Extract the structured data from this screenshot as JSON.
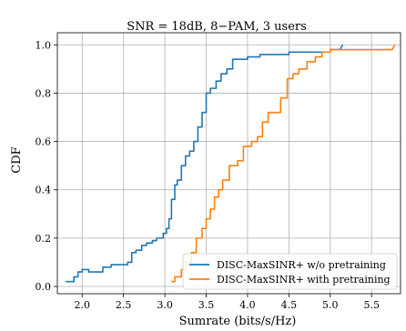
{
  "chart_data": {
    "type": "line",
    "title": "SNR = 18dB, 8−PAM, 3 users",
    "xlabel": "Sumrate (bits/s/Hz)",
    "ylabel": "CDF",
    "xlim": [
      1.7,
      5.85
    ],
    "ylim": [
      -0.03,
      1.05
    ],
    "xticks": [
      2.0,
      2.5,
      3.0,
      3.5,
      4.0,
      4.5,
      5.0,
      5.5
    ],
    "xtick_labels": [
      "2.0",
      "2.5",
      "3.0",
      "3.5",
      "4.0",
      "4.5",
      "5.0",
      "5.5"
    ],
    "yticks": [
      0.0,
      0.2,
      0.4,
      0.6,
      0.8,
      1.0
    ],
    "ytick_labels": [
      "0.0",
      "0.2",
      "0.4",
      "0.6",
      "0.8",
      "1.0"
    ],
    "grid": true,
    "legend": "bottom-right",
    "colors": {
      "blue": "#1f77b4",
      "orange": "#ff7f0e"
    },
    "series": [
      {
        "name": "DISC-MaxSINR+ w/o pretraining",
        "color": "#1f77b4",
        "x": [
          1.8,
          1.9,
          1.9,
          1.95,
          1.95,
          2.0,
          2.0,
          2.08,
          2.08,
          2.25,
          2.25,
          2.35,
          2.35,
          2.55,
          2.55,
          2.6,
          2.6,
          2.65,
          2.65,
          2.72,
          2.72,
          2.78,
          2.78,
          2.85,
          2.85,
          2.9,
          2.9,
          2.98,
          2.98,
          3.02,
          3.02,
          3.05,
          3.05,
          3.08,
          3.08,
          3.12,
          3.12,
          3.15,
          3.15,
          3.2,
          3.2,
          3.25,
          3.25,
          3.3,
          3.3,
          3.35,
          3.35,
          3.4,
          3.4,
          3.45,
          3.45,
          3.5,
          3.5,
          3.55,
          3.55,
          3.62,
          3.62,
          3.68,
          3.68,
          3.75,
          3.75,
          3.82,
          3.82,
          3.9,
          3.9,
          4.0,
          4.0,
          4.15,
          4.15,
          4.5,
          4.5,
          5.0,
          5.0,
          5.12,
          5.15
        ],
        "y": [
          0.02,
          0.02,
          0.04,
          0.04,
          0.06,
          0.06,
          0.07,
          0.07,
          0.06,
          0.06,
          0.08,
          0.08,
          0.09,
          0.09,
          0.1,
          0.1,
          0.14,
          0.14,
          0.15,
          0.15,
          0.17,
          0.17,
          0.18,
          0.18,
          0.19,
          0.19,
          0.2,
          0.2,
          0.22,
          0.22,
          0.24,
          0.24,
          0.28,
          0.28,
          0.36,
          0.36,
          0.42,
          0.42,
          0.44,
          0.44,
          0.5,
          0.5,
          0.54,
          0.54,
          0.56,
          0.56,
          0.6,
          0.6,
          0.66,
          0.66,
          0.72,
          0.72,
          0.8,
          0.8,
          0.82,
          0.82,
          0.85,
          0.85,
          0.88,
          0.88,
          0.9,
          0.9,
          0.94,
          0.94,
          0.94,
          0.94,
          0.95,
          0.95,
          0.96,
          0.96,
          0.97,
          0.97,
          0.98,
          0.98,
          1.0
        ]
      },
      {
        "name": "DISC-MaxSINR+ with pretraining",
        "color": "#ff7f0e",
        "x": [
          3.08,
          3.12,
          3.12,
          3.2,
          3.2,
          3.25,
          3.25,
          3.32,
          3.32,
          3.38,
          3.38,
          3.45,
          3.45,
          3.5,
          3.5,
          3.55,
          3.55,
          3.6,
          3.6,
          3.65,
          3.65,
          3.7,
          3.7,
          3.78,
          3.78,
          3.82,
          3.82,
          3.88,
          3.88,
          3.95,
          3.95,
          4.05,
          4.05,
          4.12,
          4.12,
          4.18,
          4.18,
          4.25,
          4.25,
          4.3,
          4.3,
          4.4,
          4.4,
          4.48,
          4.48,
          4.55,
          4.55,
          4.62,
          4.62,
          4.72,
          4.72,
          4.82,
          4.82,
          4.9,
          4.9,
          5.0,
          5.0,
          5.2,
          5.2,
          5.75,
          5.78
        ],
        "y": [
          0.02,
          0.02,
          0.04,
          0.04,
          0.07,
          0.07,
          0.1,
          0.1,
          0.14,
          0.14,
          0.2,
          0.2,
          0.24,
          0.24,
          0.28,
          0.28,
          0.32,
          0.32,
          0.37,
          0.37,
          0.4,
          0.4,
          0.44,
          0.44,
          0.5,
          0.5,
          0.5,
          0.5,
          0.52,
          0.52,
          0.58,
          0.58,
          0.6,
          0.6,
          0.62,
          0.62,
          0.68,
          0.68,
          0.72,
          0.72,
          0.72,
          0.72,
          0.78,
          0.78,
          0.86,
          0.86,
          0.88,
          0.88,
          0.9,
          0.9,
          0.93,
          0.93,
          0.95,
          0.95,
          0.97,
          0.97,
          0.98,
          0.98,
          0.98,
          0.98,
          1.0
        ]
      }
    ]
  }
}
